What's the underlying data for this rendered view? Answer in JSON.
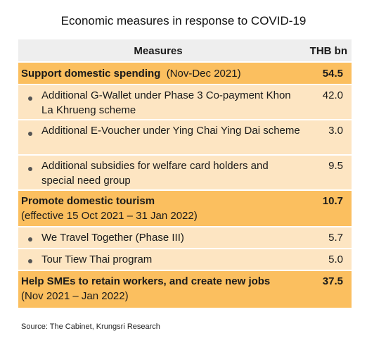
{
  "title": "Economic measures in response to COVID-19",
  "header": {
    "measures": "Measures",
    "value": "THB bn"
  },
  "sections": [
    {
      "label": "Support domestic spending",
      "period": "(Nov-Dec 2021)",
      "value": "54.5",
      "items": [
        {
          "label": "Additional G-Wallet under Phase 3 Co-payment Khon La Khrueng scheme",
          "value": "42.0"
        },
        {
          "label": "Additional E-Voucher under Ying Chai Ying Dai scheme",
          "value": "3.0"
        },
        {
          "label": "Additional subsidies for welfare card holders and special need group",
          "value": "9.5"
        }
      ]
    },
    {
      "label": "Promote domestic tourism",
      "period": "(effective 15 Oct 2021 – 31 Jan 2022)",
      "value": "10.7",
      "items": [
        {
          "label": "We Travel Together  (Phase III)",
          "value": "5.7"
        },
        {
          "label": "Tour Tiew Thai program",
          "value": "5.0"
        }
      ]
    },
    {
      "label": "Help SMEs to retain workers, and create new jobs",
      "period": "(Nov 2021 – Jan 2022)",
      "value": "37.5",
      "items": []
    }
  ],
  "source": "Source: The Cabinet, Krungsri Research"
}
